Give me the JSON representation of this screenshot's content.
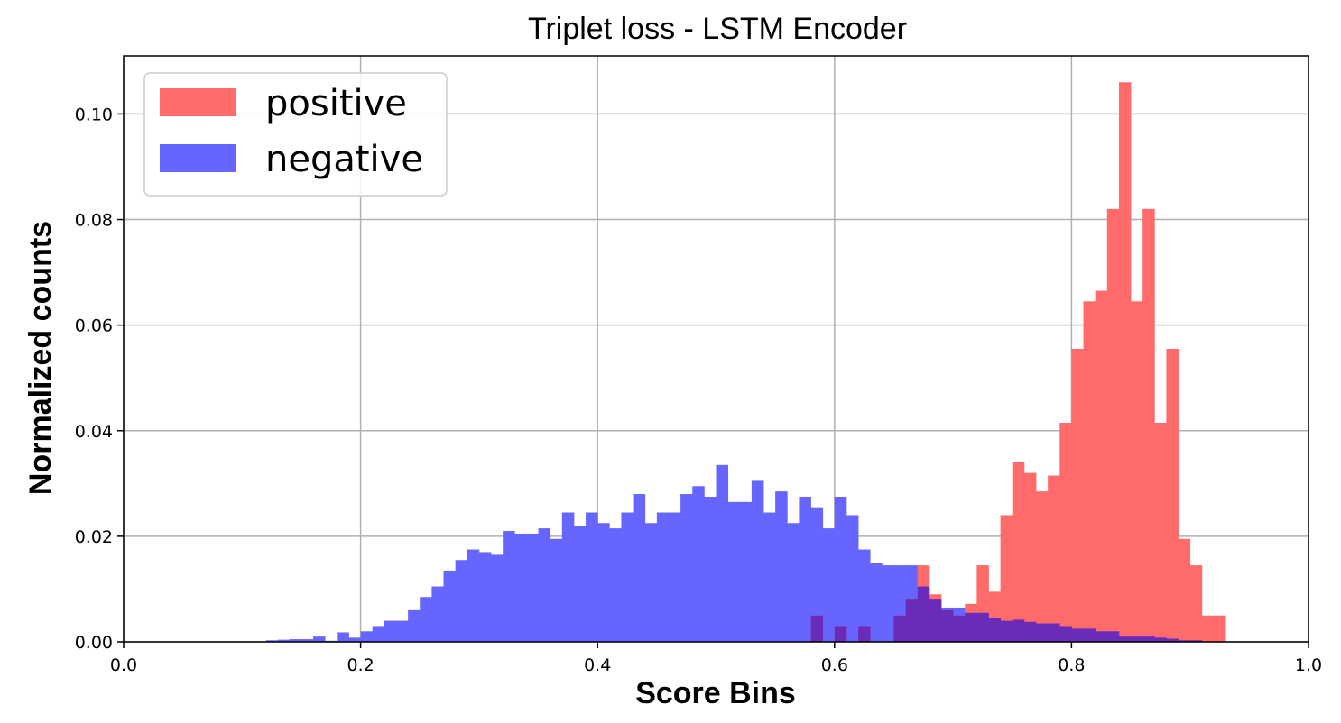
{
  "chart_data": {
    "type": "bar",
    "title": "Triplet loss - LSTM Encoder",
    "xlabel": "Score Bins",
    "ylabel": "Normalized counts",
    "xlim": [
      0.0,
      1.0
    ],
    "ylim": [
      0.0,
      0.111
    ],
    "xticks": [
      "0.0",
      "0.2",
      "0.4",
      "0.6",
      "0.8",
      "1.0"
    ],
    "yticks": [
      "0.00",
      "0.02",
      "0.04",
      "0.06",
      "0.08",
      "0.10"
    ],
    "grid": true,
    "legend_position": "top-left",
    "bin_width": 0.01,
    "series": [
      {
        "name": "positive",
        "color": "#ff6b6b",
        "bins_start": [
          0.58,
          0.6,
          0.62,
          0.65,
          0.66,
          0.67,
          0.68,
          0.69,
          0.7,
          0.71,
          0.72,
          0.73,
          0.74,
          0.75,
          0.76,
          0.77,
          0.78,
          0.79,
          0.8,
          0.81,
          0.82,
          0.83,
          0.84,
          0.85,
          0.86,
          0.87,
          0.88,
          0.89,
          0.9,
          0.91,
          0.92,
          0.93,
          0.94
        ],
        "values": [
          0.005,
          0.003,
          0.003,
          0.005,
          0.008,
          0.0145,
          0.009,
          0.006,
          0.005,
          0.0072,
          0.0145,
          0.0095,
          0.024,
          0.034,
          0.032,
          0.0285,
          0.0315,
          0.0415,
          0.0555,
          0.0645,
          0.0665,
          0.082,
          0.106,
          0.0645,
          0.082,
          0.0415,
          0.0555,
          0.0195,
          0.0145,
          0.005,
          0.005,
          0.0,
          0.0
        ]
      },
      {
        "name": "negative",
        "color": "#6666ff",
        "bins_start": [
          0.12,
          0.13,
          0.14,
          0.15,
          0.16,
          0.17,
          0.18,
          0.19,
          0.2,
          0.21,
          0.22,
          0.23,
          0.24,
          0.25,
          0.26,
          0.27,
          0.28,
          0.29,
          0.3,
          0.31,
          0.32,
          0.33,
          0.34,
          0.35,
          0.36,
          0.37,
          0.38,
          0.39,
          0.4,
          0.41,
          0.42,
          0.43,
          0.44,
          0.45,
          0.46,
          0.47,
          0.48,
          0.49,
          0.5,
          0.51,
          0.52,
          0.53,
          0.54,
          0.55,
          0.56,
          0.57,
          0.58,
          0.59,
          0.6,
          0.61,
          0.62,
          0.63,
          0.64,
          0.65,
          0.66,
          0.67,
          0.68,
          0.69,
          0.7,
          0.71,
          0.72,
          0.73,
          0.74,
          0.75,
          0.76,
          0.77,
          0.78,
          0.79,
          0.8,
          0.81,
          0.82,
          0.83,
          0.84,
          0.85,
          0.86,
          0.87,
          0.88,
          0.89,
          0.9
        ],
        "values": [
          0.0003,
          0.0004,
          0.0005,
          0.0005,
          0.001,
          0.0002,
          0.0018,
          0.0008,
          0.002,
          0.003,
          0.004,
          0.004,
          0.006,
          0.0085,
          0.0105,
          0.0135,
          0.0155,
          0.0175,
          0.017,
          0.0165,
          0.021,
          0.0205,
          0.0205,
          0.0215,
          0.0195,
          0.0245,
          0.022,
          0.0245,
          0.0225,
          0.0215,
          0.0245,
          0.028,
          0.0225,
          0.0245,
          0.0245,
          0.028,
          0.0295,
          0.0275,
          0.0335,
          0.0265,
          0.0265,
          0.0305,
          0.0245,
          0.0285,
          0.0225,
          0.0275,
          0.0255,
          0.0215,
          0.0275,
          0.024,
          0.0175,
          0.015,
          0.0145,
          0.0145,
          0.0145,
          0.0105,
          0.008,
          0.0065,
          0.0065,
          0.0055,
          0.0055,
          0.0045,
          0.004,
          0.0042,
          0.0038,
          0.0035,
          0.0035,
          0.003,
          0.0025,
          0.0025,
          0.002,
          0.002,
          0.001,
          0.001,
          0.001,
          0.0008,
          0.0006,
          0.0003,
          0.0003
        ]
      }
    ]
  }
}
